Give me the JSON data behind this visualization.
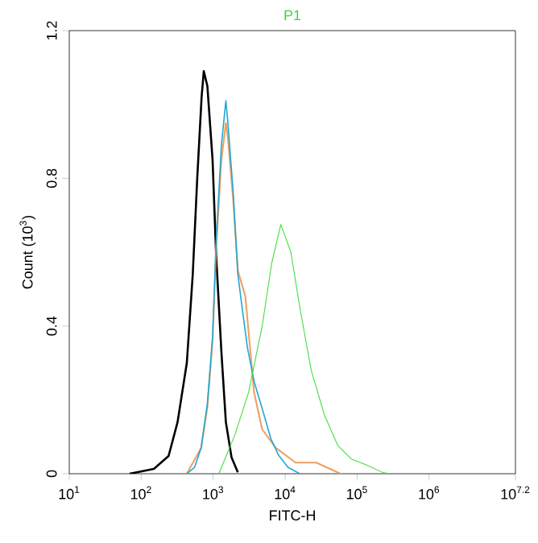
{
  "chart_data": {
    "type": "line",
    "title": "P1",
    "xlabel": "FITC-H",
    "ylabel": "Count (10$^{3}$)",
    "log": "x",
    "xlim": [
      10,
      15848932
    ],
    "ylim": [
      0,
      1.2
    ],
    "xticks": [
      {
        "value": 10,
        "label": "10$^{1}$"
      },
      {
        "value": 100,
        "label": "10$^{2}$"
      },
      {
        "value": 1000,
        "label": "10$^{3}$"
      },
      {
        "value": 10000,
        "label": "10$^{4}$"
      },
      {
        "value": 100000,
        "label": "10$^{5}$"
      },
      {
        "value": 1000000,
        "label": "10$^{6}$"
      },
      {
        "value": 15848932,
        "label": "10$^{7.2}$"
      }
    ],
    "yticks": [
      0,
      0.4,
      0.8,
      1.2
    ],
    "series": [
      {
        "color": "#000000",
        "x": [
          69,
          150,
          240,
          320,
          430,
          520,
          600,
          690,
          740,
          830,
          980,
          1100,
          1300,
          1500,
          1800,
          2200
        ],
        "values": [
          0,
          0.013,
          0.048,
          0.14,
          0.3,
          0.54,
          0.8,
          1.02,
          1.09,
          1.05,
          0.85,
          0.59,
          0.33,
          0.14,
          0.044,
          0.004
        ]
      },
      {
        "color": "#f0a060",
        "x": [
          430,
          680,
          830,
          980,
          1100,
          1300,
          1500,
          1600,
          1900,
          2200,
          2800,
          3700,
          4800,
          7400,
          14000,
          27000,
          59000
        ],
        "values": [
          0,
          0.07,
          0.18,
          0.36,
          0.61,
          0.85,
          0.95,
          0.91,
          0.74,
          0.55,
          0.48,
          0.22,
          0.12,
          0.07,
          0.03,
          0.03,
          0
        ]
      },
      {
        "color": "#1fa8d8",
        "x": [
          430,
          550,
          680,
          830,
          980,
          1100,
          1300,
          1500,
          1600,
          1900,
          2200,
          2600,
          3000,
          3700,
          4900,
          6300,
          8100,
          11000,
          16000
        ],
        "values": [
          0,
          0.017,
          0.07,
          0.19,
          0.37,
          0.63,
          0.89,
          1.01,
          0.95,
          0.76,
          0.54,
          0.43,
          0.34,
          0.25,
          0.17,
          0.096,
          0.05,
          0.017,
          0
        ]
      },
      {
        "color": "#44dd44",
        "x": [
          1200,
          2000,
          3100,
          4800,
          6500,
          8700,
          12000,
          16000,
          23000,
          35000,
          54000,
          83000,
          130000,
          230000,
          280000
        ],
        "values": [
          0,
          0.105,
          0.22,
          0.4,
          0.57,
          0.675,
          0.6,
          0.45,
          0.28,
          0.16,
          0.076,
          0.04,
          0.025,
          0.003,
          0
        ]
      }
    ]
  }
}
